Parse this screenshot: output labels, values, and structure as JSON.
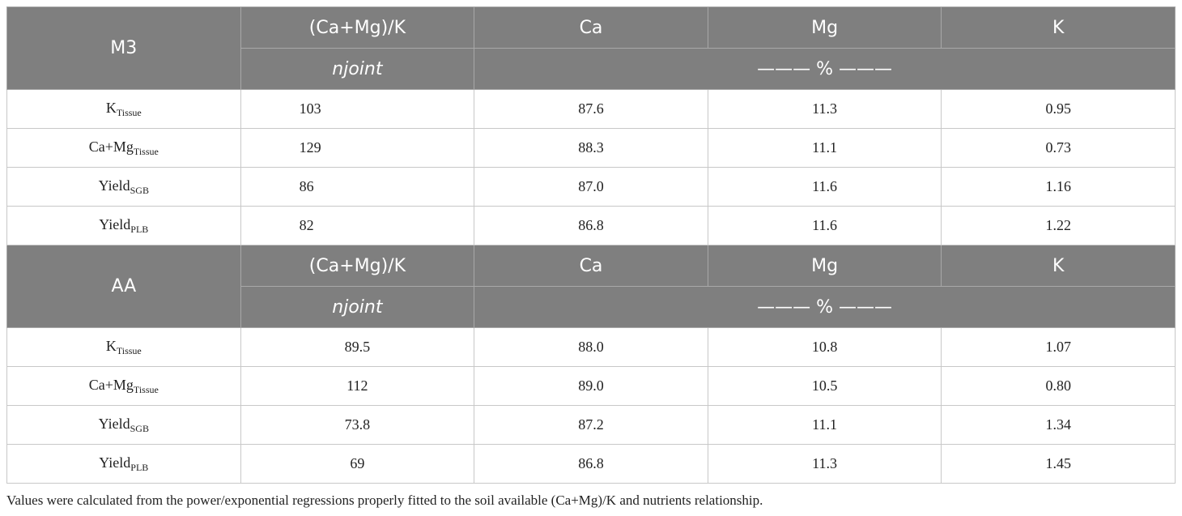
{
  "table": {
    "sections": [
      {
        "header": {
          "label": "M3",
          "columns": [
            "(Ca+Mg)/K",
            "Ca",
            "Mg",
            "K"
          ],
          "units": [
            "njoint",
            "——— % ———"
          ]
        },
        "rows": [
          {
            "label": {
              "base": "K",
              "sub": "Tissue"
            },
            "values": [
              "103",
              "87.6",
              "11.3",
              "0.95"
            ]
          },
          {
            "label": {
              "base": "Ca+Mg",
              "sub": "Tissue"
            },
            "values": [
              "129",
              "88.3",
              "11.1",
              "0.73"
            ]
          },
          {
            "label": {
              "base": "Yield",
              "sub": "SGB"
            },
            "values": [
              "86",
              "87.0",
              "11.6",
              "1.16"
            ]
          },
          {
            "label": {
              "base": "Yield",
              "sub": "PLB"
            },
            "values": [
              "82",
              "86.8",
              "11.6",
              "1.22"
            ]
          }
        ]
      },
      {
        "header": {
          "label": "AA",
          "columns": [
            "(Ca+Mg)/K",
            "Ca",
            "Mg",
            "K"
          ],
          "units": [
            "njoint",
            "——— % ———"
          ]
        },
        "rows": [
          {
            "label": {
              "base": "K",
              "sub": "Tissue"
            },
            "values": [
              "89.5",
              "88.0",
              "10.8",
              "1.07"
            ]
          },
          {
            "label": {
              "base": "Ca+Mg",
              "sub": "Tissue"
            },
            "values": [
              "112",
              "89.0",
              "10.5",
              "0.80"
            ]
          },
          {
            "label": {
              "base": "Yield",
              "sub": "SGB"
            },
            "values": [
              "73.8",
              "87.2",
              "11.1",
              "1.34"
            ]
          },
          {
            "label": {
              "base": "Yield",
              "sub": "PLB"
            },
            "values": [
              "69",
              "86.8",
              "11.3",
              "1.45"
            ]
          }
        ]
      }
    ],
    "footnote": "Values were calculated from the power/exponential regressions properly fitted to the soil available (Ca+Mg)/K and nutrients relationship."
  }
}
